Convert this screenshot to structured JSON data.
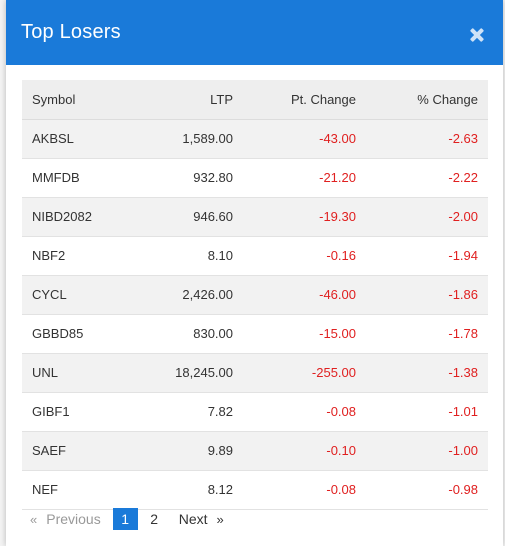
{
  "modal": {
    "title": "Top Losers",
    "close_icon": "close-icon"
  },
  "table": {
    "headers": {
      "symbol": "Symbol",
      "ltp": "LTP",
      "pt_change": "Pt. Change",
      "pct_change": "% Change"
    },
    "rows": [
      {
        "symbol": "AKBSL",
        "ltp": "1,589.00",
        "pt_change": "-43.00",
        "pct_change": "-2.63"
      },
      {
        "symbol": "MMFDB",
        "ltp": "932.80",
        "pt_change": "-21.20",
        "pct_change": "-2.22"
      },
      {
        "symbol": "NIBD2082",
        "ltp": "946.60",
        "pt_change": "-19.30",
        "pct_change": "-2.00"
      },
      {
        "symbol": "NBF2",
        "ltp": "8.10",
        "pt_change": "-0.16",
        "pct_change": "-1.94"
      },
      {
        "symbol": "CYCL",
        "ltp": "2,426.00",
        "pt_change": "-46.00",
        "pct_change": "-1.86"
      },
      {
        "symbol": "GBBD85",
        "ltp": "830.00",
        "pt_change": "-15.00",
        "pct_change": "-1.78"
      },
      {
        "symbol": "UNL",
        "ltp": "18,245.00",
        "pt_change": "-255.00",
        "pct_change": "-1.38"
      },
      {
        "symbol": "GIBF1",
        "ltp": "7.82",
        "pt_change": "-0.08",
        "pct_change": "-1.01"
      },
      {
        "symbol": "SAEF",
        "ltp": "9.89",
        "pt_change": "-0.10",
        "pct_change": "-1.00"
      },
      {
        "symbol": "NEF",
        "ltp": "8.12",
        "pt_change": "-0.08",
        "pct_change": "-0.98"
      }
    ]
  },
  "pagination": {
    "prev_arrow": "«",
    "prev_label": "Previous",
    "pages": [
      "1",
      "2"
    ],
    "active_page": "1",
    "next_label": "Next",
    "next_arrow": "»"
  },
  "colors": {
    "header_bg": "#1a7ad9",
    "negative": "#e02020",
    "active_page_bg": "#1a7ad9"
  }
}
